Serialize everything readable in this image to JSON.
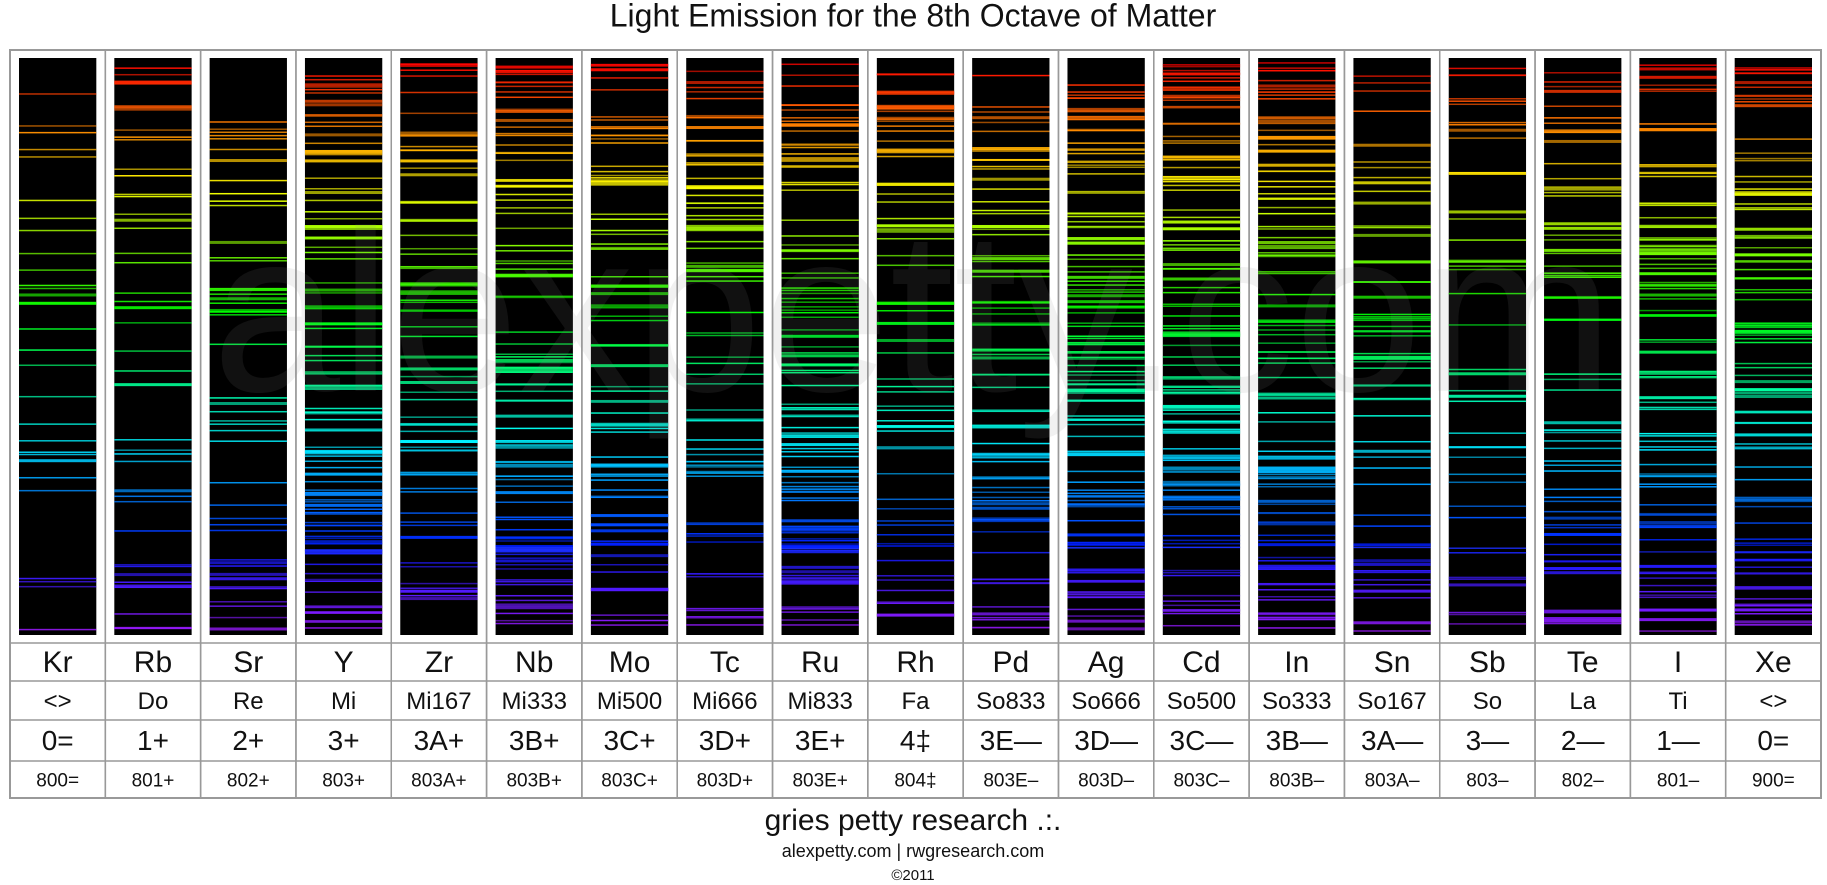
{
  "title": "Light Emission for the 8th Octave of Matter",
  "watermark": "alexpetty.com",
  "columns": [
    {
      "element": "Kr",
      "note": "<>",
      "code": "0=",
      "number": "800="
    },
    {
      "element": "Rb",
      "note": "Do",
      "code": "1+",
      "number": "801+"
    },
    {
      "element": "Sr",
      "note": "Re",
      "code": "2+",
      "number": "802+"
    },
    {
      "element": "Y",
      "note": "Mi",
      "code": "3+",
      "number": "803+"
    },
    {
      "element": "Zr",
      "note": "Mi167",
      "code": "3A+",
      "number": "803A+"
    },
    {
      "element": "Nb",
      "note": "Mi333",
      "code": "3B+",
      "number": "803B+"
    },
    {
      "element": "Mo",
      "note": "Mi500",
      "code": "3C+",
      "number": "803C+"
    },
    {
      "element": "Tc",
      "note": "Mi666",
      "code": "3D+",
      "number": "803D+"
    },
    {
      "element": "Ru",
      "note": "Mi833",
      "code": "3E+",
      "number": "803E+"
    },
    {
      "element": "Rh",
      "note": "Fa",
      "code": "4‡",
      "number": "804‡"
    },
    {
      "element": "Pd",
      "note": "So833",
      "code": "3E—",
      "number": "803E–"
    },
    {
      "element": "Ag",
      "note": "So666",
      "code": "3D—",
      "number": "803D–"
    },
    {
      "element": "Cd",
      "note": "So500",
      "code": "3C—",
      "number": "803C–"
    },
    {
      "element": "In",
      "note": "So333",
      "code": "3B—",
      "number": "803B–"
    },
    {
      "element": "Sn",
      "note": "So167",
      "code": "3A—",
      "number": "803A–"
    },
    {
      "element": "Sb",
      "note": "So",
      "code": "3—",
      "number": "803–"
    },
    {
      "element": "Te",
      "note": "La",
      "code": "2—",
      "number": "802–"
    },
    {
      "element": "I",
      "note": "Ti",
      "code": "1—",
      "number": "801–"
    },
    {
      "element": "Xe",
      "note": "<>",
      "code": "0=",
      "number": "900="
    }
  ],
  "footer": {
    "org": "gries petty research .:.",
    "links": "alexpetty.com | rwgresearch.com",
    "copyright": "©2011"
  }
}
